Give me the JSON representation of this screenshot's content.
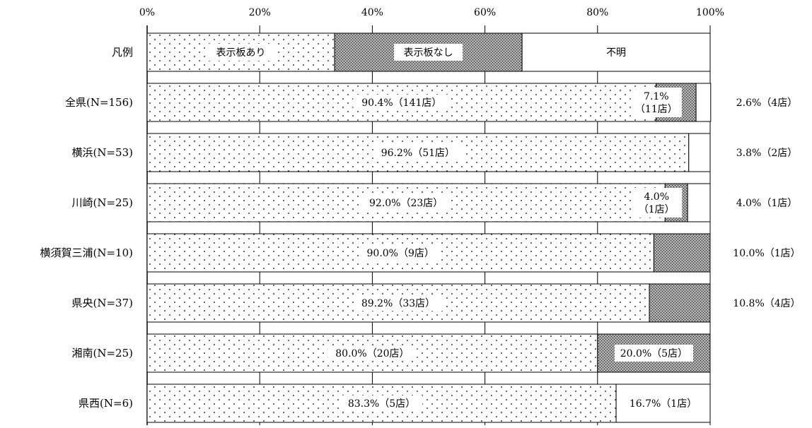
{
  "chart_data": {
    "type": "bar",
    "orientation": "horizontal",
    "stacked": true,
    "percent_scale": true,
    "xlim": [
      0,
      100
    ],
    "x_ticks": [
      "0%",
      "20%",
      "40%",
      "60%",
      "80%",
      "100%"
    ],
    "x_axis_position": "top",
    "grid": true,
    "legend_row": {
      "category": "凡例",
      "items": [
        {
          "label": "表示板あり",
          "value": 33.3,
          "pattern": "dots"
        },
        {
          "label": "表示板なし",
          "value": 33.3,
          "pattern": "dense-grey"
        },
        {
          "label": "不明",
          "value": 33.4,
          "pattern": "white"
        }
      ]
    },
    "categories": [
      "全県(N=156)",
      "横浜(N=53)",
      "川崎(N=25)",
      "横須賀三浦(N=10)",
      "県央(N=37)",
      "湘南(N=25)",
      "県西(N=6)"
    ],
    "series": [
      {
        "name": "表示板あり",
        "pattern": "dots",
        "values": [
          90.4,
          96.2,
          92.0,
          90.0,
          89.2,
          80.0,
          83.3
        ]
      },
      {
        "name": "表示板なし",
        "pattern": "dense-grey",
        "values": [
          7.1,
          0,
          4.0,
          10.0,
          10.8,
          20.0,
          0
        ]
      },
      {
        "name": "不明",
        "pattern": "white",
        "values": [
          2.6,
          3.8,
          4.0,
          0,
          0,
          0,
          16.7
        ]
      }
    ],
    "data_labels": [
      {
        "yes": "90.4%（141店）",
        "no_line1": "7.1%",
        "no_line2": "（11店）",
        "right": "2.6%（4店）"
      },
      {
        "yes": "96.2%（51店）",
        "right": "3.8%（2店）"
      },
      {
        "yes": "92.0%（23店）",
        "no_line1": "4.0%",
        "no_line2": "（1店）",
        "right": "4.0%（1店）"
      },
      {
        "yes": "90.0%（9店）",
        "right": "10.0%（1店）"
      },
      {
        "yes": "89.2%（33店）",
        "right": "10.8%（4店）"
      },
      {
        "yes": "80.0%（20店）",
        "inside": "20.0%（5店）"
      },
      {
        "yes": "83.3%（5店）",
        "inside": "16.7%（1店）"
      }
    ],
    "colors": {
      "border": "#000000",
      "dots": "#000000",
      "dense": "#7a7a7a",
      "background": "#ffffff"
    }
  }
}
